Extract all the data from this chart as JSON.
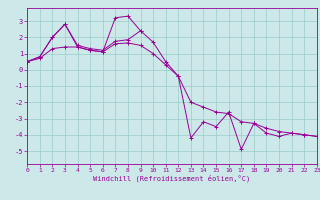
{
  "xlabel": "Windchill (Refroidissement éolien,°C)",
  "bg_color": "#cce8e8",
  "grid_color": "#99cccc",
  "line_color": "#990099",
  "hours": [
    0,
    1,
    2,
    3,
    4,
    5,
    6,
    7,
    8,
    9,
    10,
    11,
    12,
    13,
    14,
    15,
    16,
    17,
    18,
    19,
    20,
    21,
    22,
    23
  ],
  "line1": [
    0.5,
    0.8,
    2.0,
    2.8,
    1.4,
    1.2,
    1.1,
    3.2,
    3.3,
    2.4,
    null,
    null,
    null,
    null,
    null,
    null,
    null,
    null,
    null,
    null,
    null,
    null,
    null,
    null
  ],
  "line2": [
    0.5,
    0.8,
    2.0,
    2.8,
    1.5,
    1.3,
    1.2,
    1.75,
    1.85,
    2.4,
    1.7,
    0.5,
    -0.4,
    -4.2,
    -3.2,
    -3.5,
    -2.6,
    -4.9,
    -3.3,
    -3.9,
    -4.1,
    -3.9,
    -4.0,
    -4.1
  ],
  "line3": [
    0.5,
    0.7,
    1.3,
    1.4,
    1.4,
    1.2,
    1.1,
    1.6,
    1.65,
    1.5,
    1.0,
    0.3,
    -0.4,
    -2.0,
    -2.3,
    -2.6,
    -2.7,
    -3.2,
    -3.3,
    -3.6,
    -3.8,
    -3.9,
    -4.0,
    -4.1
  ],
  "ylim": [
    -5.8,
    3.8
  ],
  "yticks": [
    -5,
    -4,
    -3,
    -2,
    -1,
    0,
    1,
    2,
    3
  ],
  "xlim": [
    0,
    23
  ],
  "xticks": [
    0,
    1,
    2,
    3,
    4,
    5,
    6,
    7,
    8,
    9,
    10,
    11,
    12,
    13,
    14,
    15,
    16,
    17,
    18,
    19,
    20,
    21,
    22,
    23
  ]
}
